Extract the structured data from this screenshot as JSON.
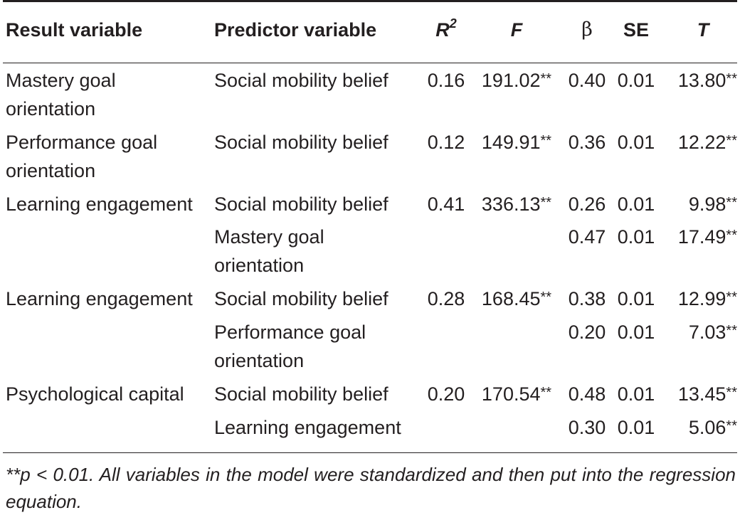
{
  "table": {
    "headers": {
      "result": "Result variable",
      "predictor": "Predictor variable",
      "r2_base": "R",
      "r2_sup": "2",
      "f": "F",
      "beta": "β",
      "se": "SE",
      "t": "T"
    },
    "rows": [
      {
        "result": "Mastery goal orientation",
        "predictor": "Social mobility belief",
        "r2": "0.16",
        "f": "191.02",
        "f_sig": "**",
        "beta": "0.40",
        "se": "0.01",
        "t": "13.80",
        "t_sig": "**"
      },
      {
        "result": "Performance goal orientation",
        "predictor": "Social mobility belief",
        "r2": "0.12",
        "f": "149.91",
        "f_sig": "**",
        "beta": "0.36",
        "se": "0.01",
        "t": "12.22",
        "t_sig": "**"
      },
      {
        "result": "Learning engagement",
        "predictor": "Social mobility belief",
        "r2": "0.41",
        "f": "336.13",
        "f_sig": "**",
        "beta": "0.26",
        "se": "0.01",
        "t": "9.98",
        "t_sig": "**"
      },
      {
        "result": "",
        "predictor": "Mastery goal orientation",
        "r2": "",
        "f": "",
        "f_sig": "",
        "beta": "0.47",
        "se": "0.01",
        "t": "17.49",
        "t_sig": "**"
      },
      {
        "result": "Learning engagement",
        "predictor": "Social mobility belief",
        "r2": "0.28",
        "f": "168.45",
        "f_sig": "**",
        "beta": "0.38",
        "se": "0.01",
        "t": "12.99",
        "t_sig": "**"
      },
      {
        "result": "",
        "predictor": "Performance goal orientation",
        "r2": "",
        "f": "",
        "f_sig": "",
        "beta": "0.20",
        "se": "0.01",
        "t": "7.03",
        "t_sig": "**"
      },
      {
        "result": "Psychological capital",
        "predictor": "Social mobility belief",
        "r2": "0.20",
        "f": "170.54",
        "f_sig": "**",
        "beta": "0.48",
        "se": "0.01",
        "t": "13.45",
        "t_sig": "**"
      },
      {
        "result": "",
        "predictor": "Learning engagement",
        "r2": "",
        "f": "",
        "f_sig": "",
        "beta": "0.30",
        "se": "0.01",
        "t": "5.06",
        "t_sig": "**"
      }
    ]
  },
  "footnote": "**p < 0.01. All variables in the model were standardized and then put into the regression equation."
}
